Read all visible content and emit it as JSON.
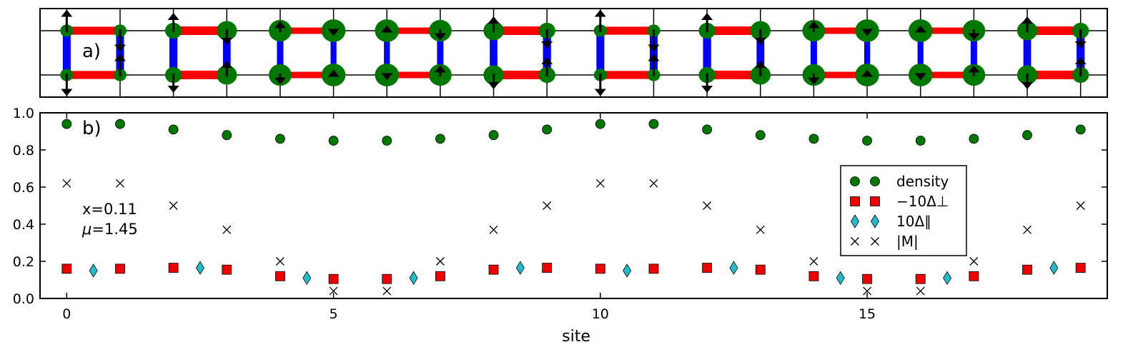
{
  "panel_a": {
    "label": "a)",
    "sites": 20,
    "hole_density": [
      0.06,
      0.06,
      0.09,
      0.12,
      0.14,
      0.15,
      0.15,
      0.14,
      0.12,
      0.09,
      0.06,
      0.06,
      0.09,
      0.12,
      0.14,
      0.15,
      0.15,
      0.14,
      0.12,
      0.09
    ],
    "spin_top": [
      1,
      -1,
      1,
      -1,
      1,
      -1,
      1,
      -1,
      1,
      -1,
      1,
      -1,
      1,
      -1,
      1,
      -1,
      1,
      -1,
      1,
      -1
    ],
    "spin_bottom": [
      -1,
      1,
      -1,
      1,
      -1,
      1,
      -1,
      1,
      -1,
      1,
      -1,
      1,
      -1,
      1,
      -1,
      1,
      -1,
      1,
      -1,
      1
    ],
    "spin_magnitude": [
      0.62,
      0.62,
      0.5,
      0.37,
      0.2,
      0.04,
      0.04,
      0.2,
      0.37,
      0.5,
      0.62,
      0.62,
      0.5,
      0.37,
      0.2,
      0.04,
      0.04,
      0.2,
      0.37,
      0.5
    ],
    "rung_pairing": [
      0.16,
      0.16,
      0.165,
      0.155,
      0.12,
      0.105,
      0.105,
      0.12,
      0.155,
      0.165,
      0.16,
      0.16,
      0.165,
      0.155,
      0.12,
      0.105,
      0.105,
      0.12,
      0.155,
      0.165
    ],
    "leg_pairing": [
      0.15,
      0.15,
      0.165,
      0.165,
      0.11,
      0.11,
      0.11,
      0.11,
      0.165,
      0.165,
      0.15,
      0.15,
      0.165,
      0.165,
      0.11,
      0.11,
      0.11,
      0.11,
      0.165,
      0.165
    ],
    "colors": {
      "leg_bond": "#ff0000",
      "rung_bond": "#0000ff",
      "hole": "#007700",
      "spin": "#000000"
    }
  },
  "chart_data": {
    "type": "scatter",
    "panel_label": "b)",
    "xlabel": "site",
    "ylabel": "",
    "xlim": [
      -0.5,
      19.5
    ],
    "ylim": [
      0.0,
      1.0
    ],
    "xticks": [
      0,
      5,
      10,
      15
    ],
    "yticks": [
      0.0,
      0.2,
      0.4,
      0.6,
      0.8,
      1.0
    ],
    "ytick_labels": [
      "0.0",
      "0.2",
      "0.4",
      "0.6",
      "0.8",
      "1.0"
    ],
    "annotation": {
      "x_label": "x=0.11",
      "mu_label": "=1.45",
      "mu_symbol": "μ"
    },
    "legend_position": "center-right",
    "series": [
      {
        "name": "density",
        "marker": "circle",
        "color": "#007700",
        "x": [
          0,
          1,
          2,
          3,
          4,
          5,
          6,
          7,
          8,
          9,
          10,
          11,
          12,
          13,
          14,
          15,
          16,
          17,
          18,
          19
        ],
        "y": [
          0.94,
          0.94,
          0.91,
          0.88,
          0.86,
          0.85,
          0.85,
          0.86,
          0.88,
          0.91,
          0.94,
          0.94,
          0.91,
          0.88,
          0.86,
          0.85,
          0.85,
          0.86,
          0.88,
          0.91
        ]
      },
      {
        "name": "−10Δ⊥",
        "marker": "square",
        "color": "#ee0000",
        "x": [
          0,
          1,
          2,
          3,
          4,
          5,
          6,
          7,
          8,
          9,
          10,
          11,
          12,
          13,
          14,
          15,
          16,
          17,
          18,
          19
        ],
        "y": [
          0.16,
          0.16,
          0.165,
          0.155,
          0.12,
          0.105,
          0.105,
          0.12,
          0.155,
          0.165,
          0.16,
          0.16,
          0.165,
          0.155,
          0.12,
          0.105,
          0.105,
          0.12,
          0.155,
          0.165
        ]
      },
      {
        "name": "10Δ∥",
        "marker": "diamond",
        "color": "#22bbcc",
        "x": [
          0.5,
          2.5,
          4.5,
          6.5,
          8.5,
          10.5,
          12.5,
          14.5,
          16.5,
          18.5
        ],
        "y": [
          0.15,
          0.165,
          0.11,
          0.11,
          0.165,
          0.15,
          0.165,
          0.11,
          0.11,
          0.165
        ]
      },
      {
        "name": "|M|",
        "marker": "x",
        "color": "#000000",
        "x": [
          0,
          1,
          2,
          3,
          4,
          5,
          6,
          7,
          8,
          9,
          10,
          11,
          12,
          13,
          14,
          15,
          16,
          17,
          18,
          19
        ],
        "y": [
          0.62,
          0.62,
          0.5,
          0.37,
          0.2,
          0.04,
          0.04,
          0.2,
          0.37,
          0.5,
          0.62,
          0.62,
          0.5,
          0.37,
          0.2,
          0.04,
          0.04,
          0.2,
          0.37,
          0.5
        ]
      }
    ]
  }
}
